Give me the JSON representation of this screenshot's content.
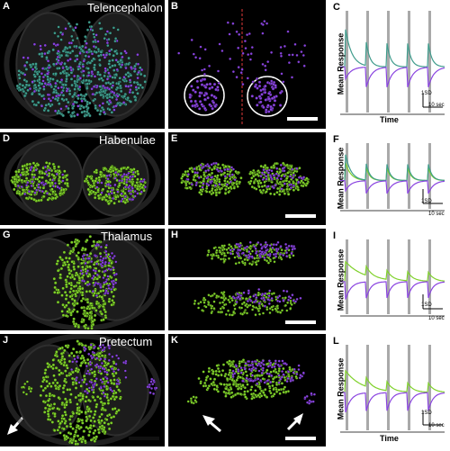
{
  "panels": {
    "A": {
      "label": "A",
      "region": "Telencephalon"
    },
    "B": {
      "label": "B"
    },
    "C": {
      "label": "C"
    },
    "D": {
      "label": "D",
      "region": "Habenulae"
    },
    "E": {
      "label": "E"
    },
    "F": {
      "label": "F"
    },
    "G": {
      "label": "G",
      "region": "Thalamus"
    },
    "H": {
      "label": "H"
    },
    "I": {
      "label": "I"
    },
    "J": {
      "label": "J",
      "region": "Pretectum"
    },
    "K": {
      "label": "K"
    },
    "L": {
      "label": "L"
    }
  },
  "plot_text": {
    "ylabel": "Mean Response",
    "xlabel": "Time",
    "scale_y": "1SD",
    "scale_x": "10 sec"
  },
  "colors": {
    "teal": "#3f9c8c",
    "purple": "#8a44e0",
    "green": "#7fd12a",
    "stim_bar": "#9a9a9a"
  },
  "chart_data": [
    {
      "type": "line",
      "panel": "C",
      "series": [
        {
          "color_key": "teal"
        },
        {
          "color_key": "purple"
        }
      ],
      "stimuli": 5
    },
    {
      "type": "line",
      "panel": "F",
      "series": [
        {
          "color_key": "teal"
        },
        {
          "color_key": "purple"
        },
        {
          "color_key": "green"
        }
      ],
      "stimuli": 5
    },
    {
      "type": "line",
      "panel": "I",
      "series": [
        {
          "color_key": "green"
        },
        {
          "color_key": "purple"
        }
      ],
      "stimuli": 5
    },
    {
      "type": "line",
      "panel": "L",
      "series": [
        {
          "color_key": "green"
        },
        {
          "color_key": "purple"
        }
      ],
      "stimuli": 5
    }
  ]
}
